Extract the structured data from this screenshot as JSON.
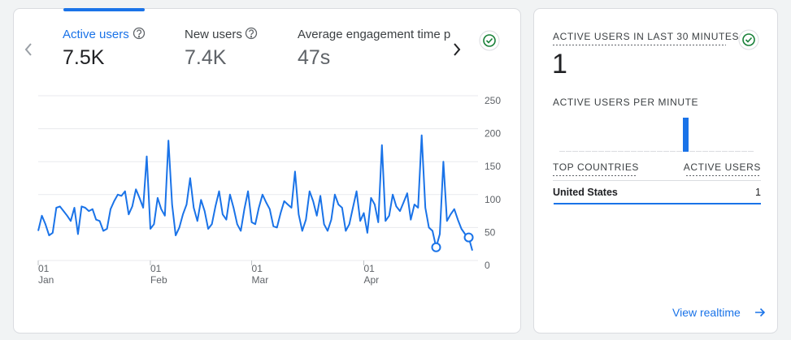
{
  "metrics": [
    {
      "label": "Active users",
      "value": "7.5K"
    },
    {
      "label": "New users",
      "value": "7.4K"
    },
    {
      "label": "Average engagement time p",
      "value": "47s"
    }
  ],
  "chart_data": {
    "type": "line",
    "color": "#1a73e8",
    "values": [
      45,
      68,
      55,
      38,
      42,
      80,
      82,
      75,
      68,
      60,
      80,
      40,
      82,
      80,
      75,
      78,
      62,
      60,
      45,
      48,
      78,
      90,
      100,
      98,
      105,
      70,
      82,
      108,
      95,
      80,
      158,
      48,
      55,
      95,
      78,
      68,
      182,
      85,
      38,
      50,
      70,
      85,
      125,
      80,
      60,
      92,
      75,
      48,
      55,
      82,
      105,
      70,
      62,
      100,
      80,
      55,
      45,
      78,
      105,
      58,
      55,
      80,
      100,
      88,
      78,
      52,
      50,
      72,
      90,
      85,
      80,
      135,
      70,
      45,
      62,
      105,
      90,
      68,
      98,
      55,
      45,
      62,
      100,
      85,
      80,
      45,
      55,
      80,
      105,
      60,
      72,
      42,
      95,
      85,
      58,
      175,
      60,
      68,
      100,
      82,
      75,
      88,
      102,
      62,
      85,
      80,
      190,
      80,
      50,
      45,
      20,
      40,
      150,
      60,
      70,
      78,
      62,
      48,
      40,
      35,
      15
    ],
    "anomalies": [
      110,
      119
    ],
    "xlim": [
      0,
      120
    ],
    "xticks": [
      {
        "value": 0,
        "label": "01",
        "month": "Jan"
      },
      {
        "value": 31,
        "label": "01",
        "month": "Feb"
      },
      {
        "value": 59,
        "label": "01",
        "month": "Mar"
      },
      {
        "value": 90,
        "label": "01",
        "month": "Apr"
      }
    ],
    "ylim": [
      0,
      250
    ],
    "yticks": [
      0,
      50,
      100,
      150,
      200,
      250
    ],
    "grid": true
  },
  "realtime": {
    "title": "ACTIVE USERS IN LAST 30 MINUTES",
    "value": "1",
    "per_minute_title": "ACTIVE USERS PER MINUTE",
    "per_minute": {
      "type": "bar",
      "color": "#1a73e8",
      "values": [
        0,
        0,
        0,
        0,
        0,
        0,
        0,
        0,
        0,
        0,
        0,
        0,
        0,
        0,
        0,
        0,
        0,
        0,
        0,
        1,
        0,
        0,
        0,
        0,
        0,
        0,
        0,
        0,
        0,
        0
      ]
    },
    "table": {
      "headers": [
        "TOP COUNTRIES",
        "ACTIVE USERS"
      ],
      "rows": [
        [
          "United States",
          "1"
        ]
      ]
    },
    "link": "View realtime"
  }
}
